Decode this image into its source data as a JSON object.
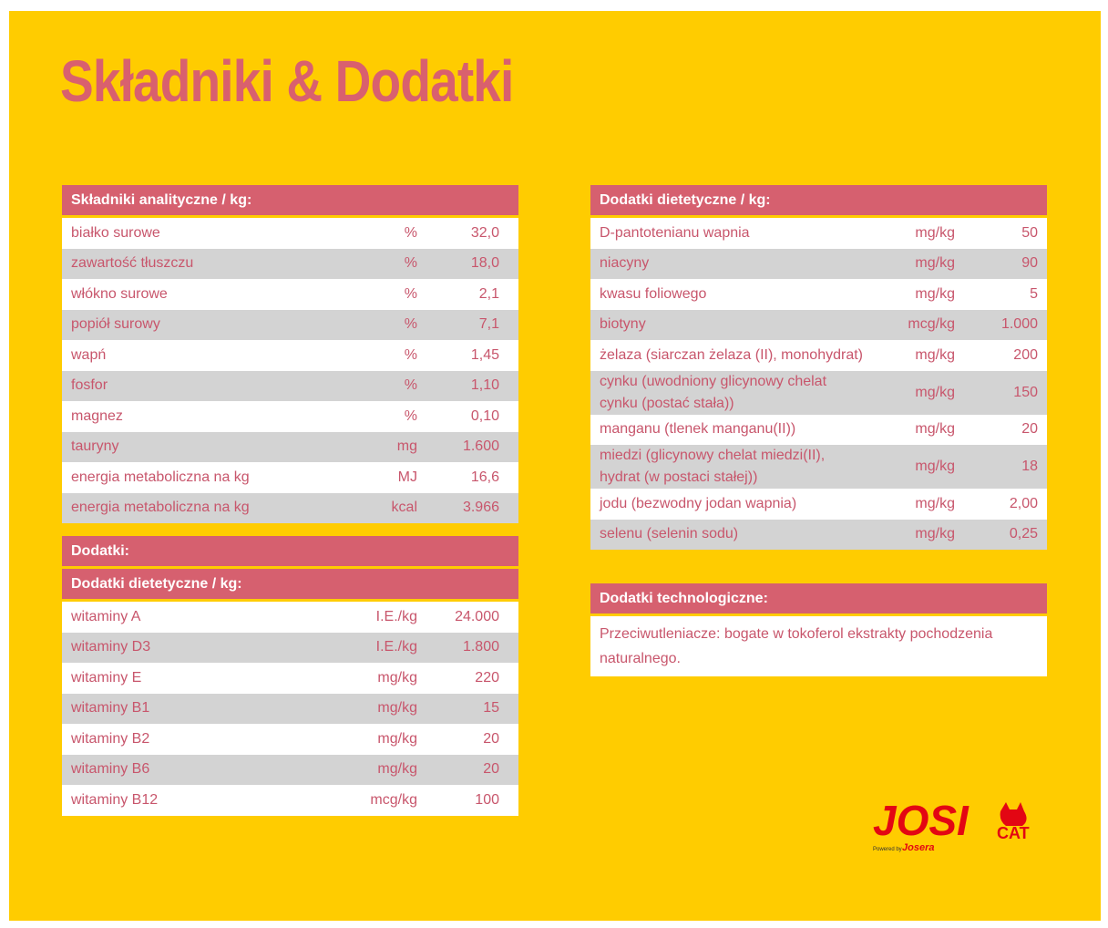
{
  "title": "Składniki & Dodatki",
  "analytical": {
    "header": "Składniki analityczne / kg:",
    "rows": [
      [
        "białko surowe",
        "%",
        "32,0"
      ],
      [
        "zawartość tłuszczu",
        "%",
        "18,0"
      ],
      [
        "włókno surowe",
        "%",
        "2,1"
      ],
      [
        "popiół surowy",
        "%",
        "7,1"
      ],
      [
        "wapń",
        "%",
        "1,45"
      ],
      [
        "fosfor",
        "%",
        "1,10"
      ],
      [
        "magnez",
        "%",
        "0,10"
      ],
      [
        "tauryny",
        "mg",
        "1.600"
      ],
      [
        "energia metaboliczna na kg",
        "MJ",
        "16,6"
      ],
      [
        "energia metaboliczna na kg",
        "kcal",
        "3.966"
      ]
    ]
  },
  "additives": {
    "header": "Dodatki:",
    "subheader": "Dodatki dietetyczne / kg:",
    "rows": [
      [
        "witaminy A",
        "I.E./kg",
        "24.000"
      ],
      [
        "witaminy D3",
        "I.E./kg",
        "1.800"
      ],
      [
        "witaminy E",
        "mg/kg",
        "220"
      ],
      [
        "witaminy B1",
        "mg/kg",
        "15"
      ],
      [
        "witaminy B2",
        "mg/kg",
        "20"
      ],
      [
        "witaminy B6",
        "mg/kg",
        "20"
      ],
      [
        "witaminy B12",
        "mcg/kg",
        "100"
      ]
    ]
  },
  "dietary": {
    "header": "Dodatki dietetyczne / kg:",
    "rows": [
      [
        "D-pantotenianu wapnia",
        "mg/kg",
        "50"
      ],
      [
        "niacyny",
        "mg/kg",
        "90"
      ],
      [
        "kwasu foliowego",
        "mg/kg",
        "5"
      ],
      [
        "biotyny",
        "mcg/kg",
        "1.000"
      ],
      [
        "żelaza (siarczan żelaza (II), monohydrat)",
        "mg/kg",
        "200"
      ],
      [
        "cynku (uwodniony glicynowy chelat cynku (postać stała))",
        "mg/kg",
        "150"
      ],
      [
        "manganu (tlenek manganu(II))",
        "mg/kg",
        "20"
      ],
      [
        "miedzi (glicynowy chelat miedzi(II), hydrat (w postaci stałej))",
        "mg/kg",
        "18"
      ],
      [
        "jodu (bezwodny jodan wapnia)",
        "mg/kg",
        "2,00"
      ],
      [
        "selenu (selenin sodu)",
        "mg/kg",
        "0,25"
      ]
    ]
  },
  "technological": {
    "header": "Dodatki technologiczne:",
    "text": "Przeciwutleniacze: bogate w tokoferol ekstrakty pochodzenia naturalnego."
  },
  "logo": {
    "brand": "JOSI",
    "sub": "CAT",
    "powered": "Powered by",
    "maker": "Josera"
  }
}
